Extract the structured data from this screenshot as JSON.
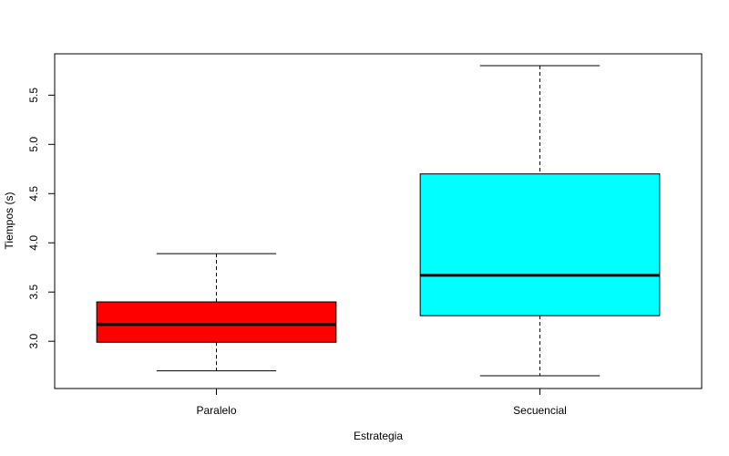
{
  "chart_data": {
    "type": "boxplot",
    "title": "",
    "xlabel": "Estrategia",
    "ylabel": "Tiempos (s)",
    "ylim": [
      2.52,
      5.92
    ],
    "yticks": [
      "3.0",
      "3.5",
      "4.0",
      "4.5",
      "5.0",
      "5.5"
    ],
    "grid": false,
    "legend": "none",
    "categories": [
      "Paralelo",
      "Secuencial"
    ],
    "boxes": [
      {
        "category": "Paralelo",
        "whisker_low": 2.7,
        "q1": 2.99,
        "median": 3.17,
        "q3": 3.4,
        "whisker_high": 3.89,
        "color": "#ff0000"
      },
      {
        "category": "Secuencial",
        "whisker_low": 2.65,
        "q1": 3.26,
        "median": 3.67,
        "q3": 4.7,
        "whisker_high": 5.8,
        "color": "#00ffff"
      }
    ]
  }
}
